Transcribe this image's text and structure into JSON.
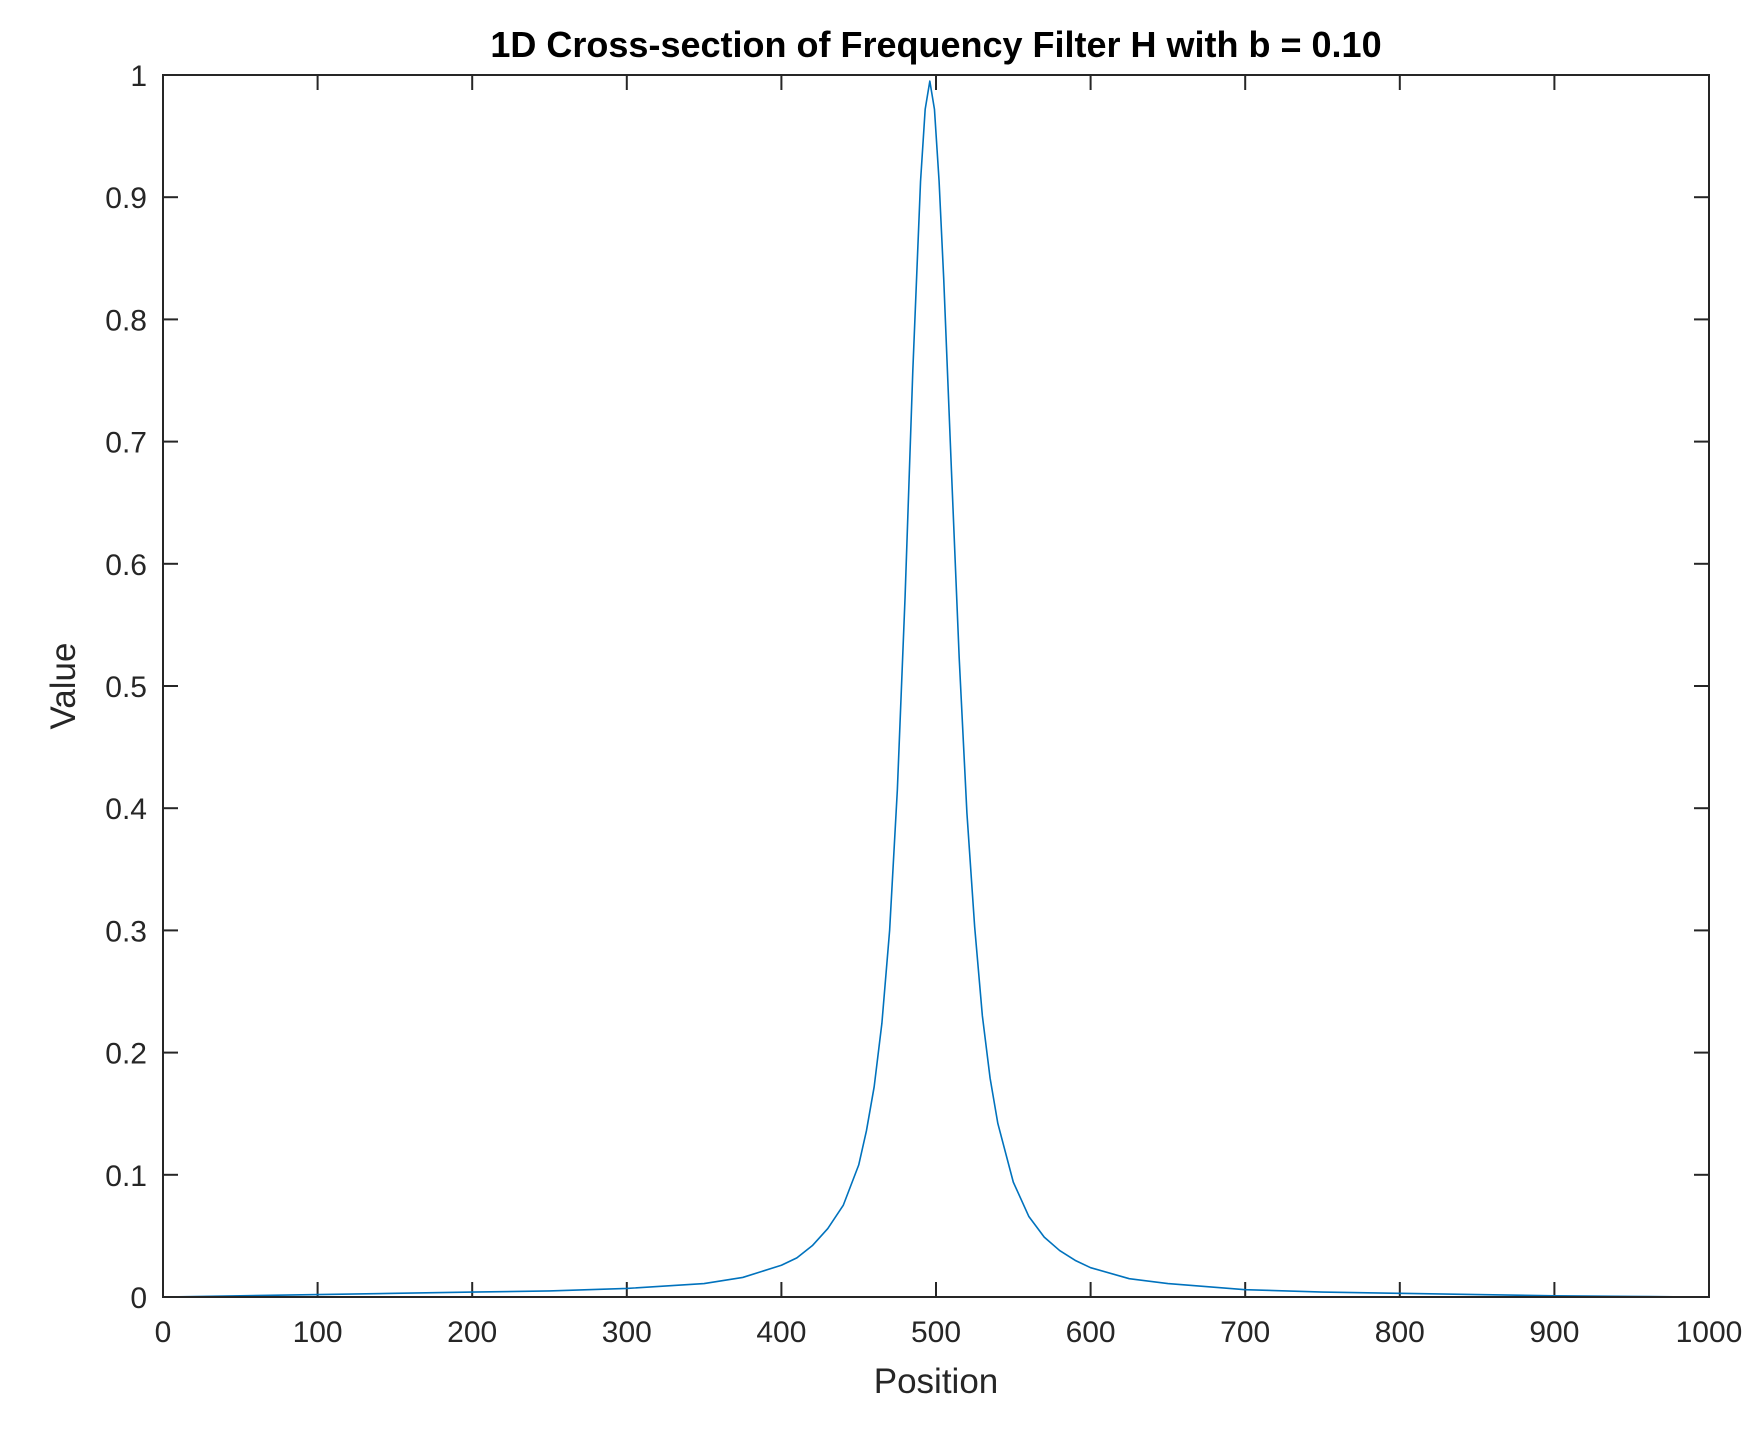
{
  "chart_data": {
    "type": "line",
    "title": "1D Cross-section of Frequency Filter H with b = 0.10",
    "xlabel": "Position",
    "ylabel": "Value",
    "xlim": [
      0,
      1000
    ],
    "ylim": [
      0,
      1
    ],
    "xticks": [
      0,
      100,
      200,
      300,
      400,
      500,
      600,
      700,
      800,
      900,
      1000
    ],
    "xtick_labels": [
      "0",
      "100",
      "200",
      "300",
      "400",
      "500",
      "600",
      "700",
      "800",
      "900",
      "1000"
    ],
    "yticks": [
      0,
      0.1,
      0.2,
      0.3,
      0.4,
      0.5,
      0.6,
      0.7,
      0.8,
      0.9,
      1
    ],
    "ytick_labels": [
      "0",
      "0.1",
      "0.2",
      "0.3",
      "0.4",
      "0.5",
      "0.6",
      "0.7",
      "0.8",
      "0.9",
      "1"
    ],
    "grid": false,
    "box": true,
    "line_color": "#0072BD",
    "series": [
      {
        "x": [
          0,
          50,
          100,
          150,
          200,
          250,
          300,
          350,
          375,
          400,
          410,
          420,
          430,
          440,
          450,
          455,
          460,
          465,
          470,
          475,
          480,
          485,
          490,
          493,
          496,
          499,
          502,
          505,
          510,
          515,
          520,
          525,
          530,
          535,
          540,
          550,
          560,
          570,
          580,
          590,
          600,
          625,
          650,
          700,
          750,
          800,
          850,
          900,
          950,
          992
        ],
        "y": [
          0.0,
          0.001,
          0.002,
          0.003,
          0.004,
          0.005,
          0.007,
          0.011,
          0.016,
          0.026,
          0.032,
          0.042,
          0.056,
          0.075,
          0.108,
          0.136,
          0.172,
          0.224,
          0.3,
          0.415,
          0.573,
          0.758,
          0.913,
          0.972,
          0.995,
          0.972,
          0.913,
          0.833,
          0.676,
          0.523,
          0.396,
          0.303,
          0.23,
          0.179,
          0.142,
          0.094,
          0.066,
          0.049,
          0.038,
          0.03,
          0.024,
          0.015,
          0.011,
          0.006,
          0.004,
          0.003,
          0.002,
          0.001,
          0.0005,
          0.0
        ]
      }
    ]
  }
}
